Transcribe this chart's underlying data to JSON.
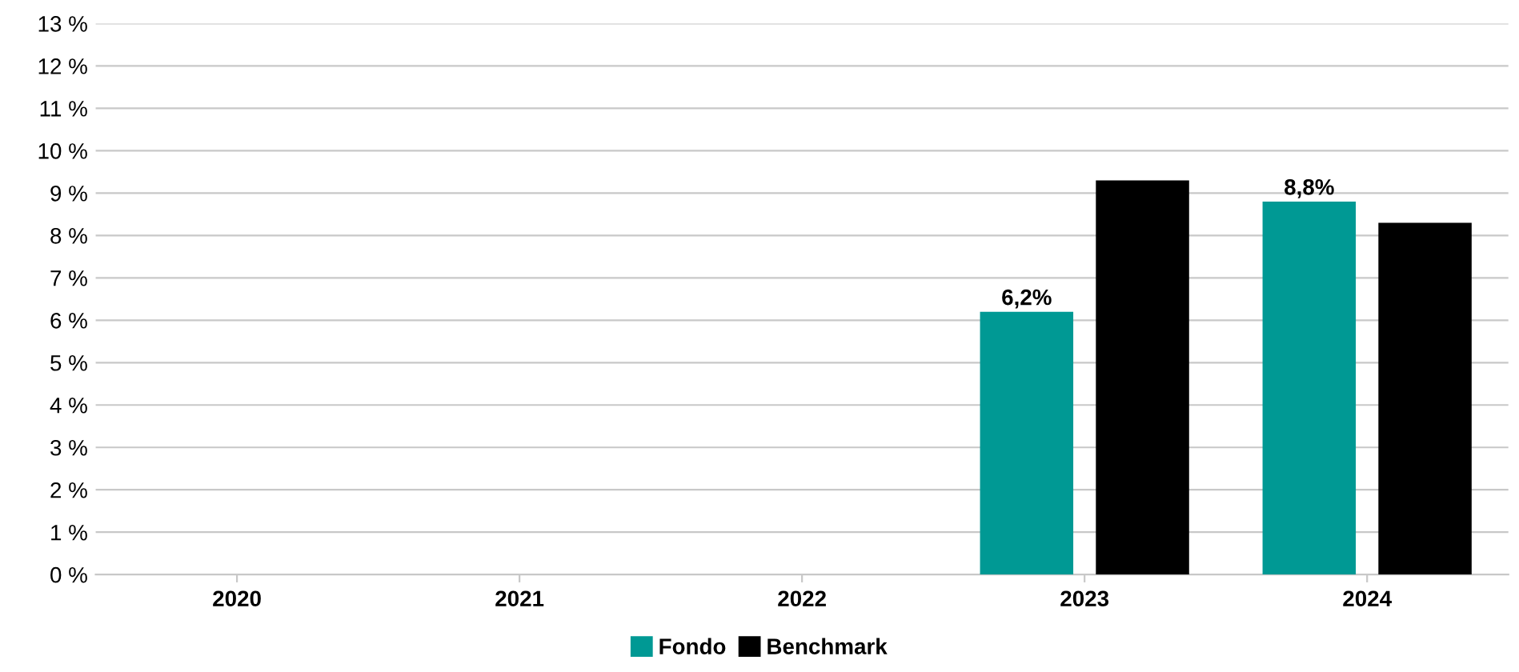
{
  "chart_data": {
    "type": "bar",
    "categories": [
      "2020",
      "2021",
      "2022",
      "2023",
      "2024"
    ],
    "series": [
      {
        "name": "Fondo",
        "color": "#009994",
        "values": [
          null,
          null,
          null,
          6.2,
          8.8
        ],
        "value_labels": [
          null,
          null,
          null,
          "6,2%",
          "8,8%"
        ]
      },
      {
        "name": "Benchmark",
        "color": "#000000",
        "values": [
          null,
          null,
          null,
          9.3,
          8.3
        ]
      }
    ],
    "ylim": [
      0,
      13
    ],
    "yticks": [
      {
        "value": 0,
        "label": "0 %"
      },
      {
        "value": 1,
        "label": "1 %"
      },
      {
        "value": 2,
        "label": "2 %"
      },
      {
        "value": 3,
        "label": "3 %"
      },
      {
        "value": 4,
        "label": "4 %"
      },
      {
        "value": 5,
        "label": "5 %"
      },
      {
        "value": 6,
        "label": "6 %"
      },
      {
        "value": 7,
        "label": "7 %"
      },
      {
        "value": 8,
        "label": "8 %"
      },
      {
        "value": 9,
        "label": "9 %"
      },
      {
        "value": 10,
        "label": "10 %"
      },
      {
        "value": 11,
        "label": "11 %"
      },
      {
        "value": 12,
        "label": "12 %"
      },
      {
        "value": 13,
        "label": "13 %"
      }
    ],
    "grid": "y",
    "legend": "bottom"
  }
}
